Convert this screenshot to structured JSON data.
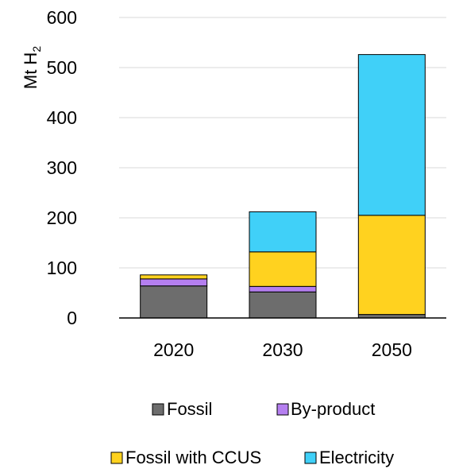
{
  "chart_data": {
    "type": "bar",
    "stacked": true,
    "title": "",
    "xlabel": "",
    "ylabel": "Mt H",
    "ylabel_subscript": "2",
    "categories": [
      "2020",
      "2030",
      "2050"
    ],
    "ylim": [
      0,
      600
    ],
    "yticks": [
      0,
      100,
      200,
      300,
      400,
      500,
      600
    ],
    "grid": true,
    "legend_position": "bottom",
    "series": [
      {
        "name": "Fossil",
        "color": "#6d6d6d",
        "values": [
          64,
          52,
          7
        ]
      },
      {
        "name": "By-product",
        "color": "#b57ff0",
        "values": [
          14,
          11,
          0
        ]
      },
      {
        "name": "Fossil with CCUS",
        "color": "#ffd21f",
        "values": [
          8,
          69,
          198
        ]
      },
      {
        "name": "Electricity",
        "color": "#40d0f8",
        "values": [
          0,
          80,
          321
        ]
      }
    ]
  }
}
